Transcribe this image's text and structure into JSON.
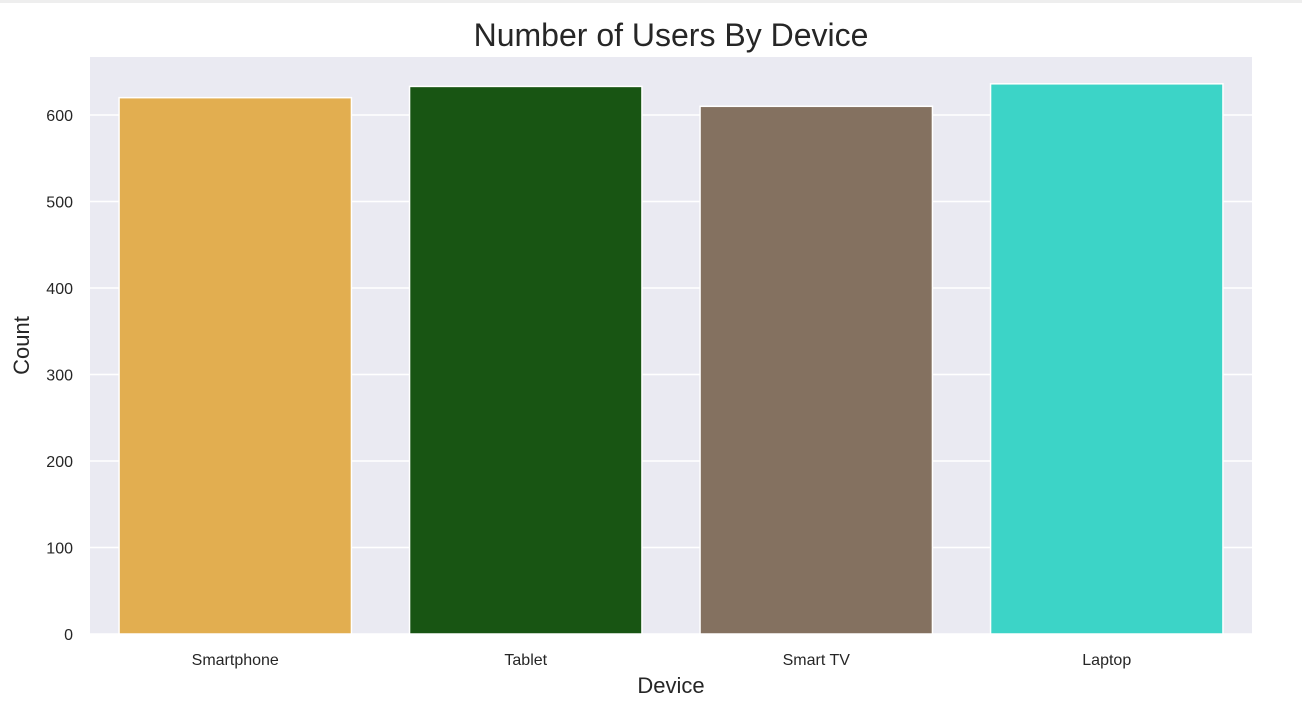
{
  "chart_data": {
    "type": "bar",
    "title": "Number of Users By Device",
    "xlabel": "Device",
    "ylabel": "Count",
    "categories": [
      "Smartphone",
      "Tablet",
      "Smart TV",
      "Laptop"
    ],
    "values": [
      620,
      633,
      610,
      636
    ],
    "colors": [
      "#e2ae50",
      "#185513",
      "#847160",
      "#3cd4c7"
    ],
    "ylim": [
      0,
      667
    ],
    "yticks": [
      0,
      100,
      200,
      300,
      400,
      500,
      600
    ],
    "grid": true,
    "background": "#eaeaf2",
    "grid_color": "#ffffff",
    "legend": "none"
  }
}
